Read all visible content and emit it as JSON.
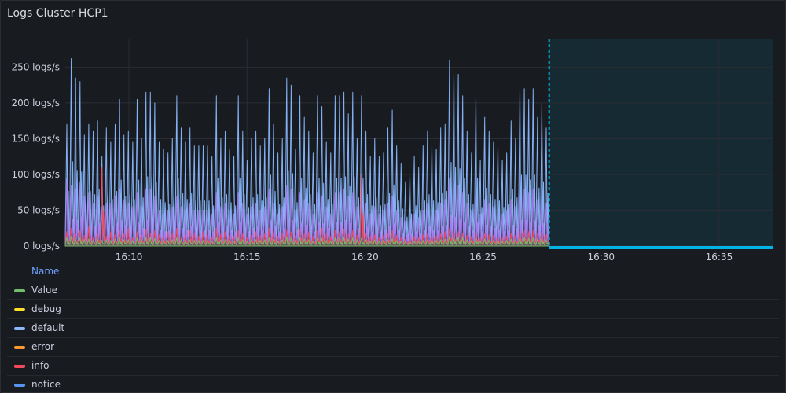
{
  "panel": {
    "title": "Logs Cluster HCP1"
  },
  "legend": {
    "header": "Name",
    "items": [
      {
        "label": "Value",
        "color": "#73bf69"
      },
      {
        "label": "debug",
        "color": "#fade2a"
      },
      {
        "label": "default",
        "color": "#8ab8ff"
      },
      {
        "label": "error",
        "color": "#ff9830"
      },
      {
        "label": "info",
        "color": "#f2495c"
      },
      {
        "label": "notice",
        "color": "#5794f2"
      }
    ]
  },
  "chart_data": {
    "type": "area",
    "ylabel_unit": "logs/s",
    "ylim": [
      0,
      290
    ],
    "y_ticks": [
      "0 logs/s",
      "50 logs/s",
      "100 logs/s",
      "150 logs/s",
      "200 logs/s",
      "250 logs/s"
    ],
    "y_tick_values": [
      0,
      50,
      100,
      150,
      200,
      250
    ],
    "x_ticks": [
      "16:10",
      "16:15",
      "16:20",
      "16:25",
      "16:30",
      "16:35"
    ],
    "x_tick_minutes": [
      10,
      15,
      20,
      25,
      30,
      35
    ],
    "x_range_minutes": [
      7.3,
      37.3
    ],
    "data_end_minute": 27.8,
    "grid": true,
    "series": [
      {
        "name": "default",
        "color": "#8ab8ff",
        "peaks": [
          170,
          262,
          235,
          230,
          155,
          170,
          160,
          175,
          125,
          165,
          145,
          170,
          205,
          155,
          160,
          145,
          205,
          150,
          215,
          215,
          200,
          145,
          135,
          130,
          150,
          210,
          165,
          145,
          165,
          140,
          140,
          140,
          140,
          125,
          210,
          150,
          160,
          135,
          125,
          210,
          160,
          120,
          150,
          160,
          140,
          150,
          220,
          170,
          130,
          150,
          235,
          225,
          135,
          210,
          180,
          160,
          130,
          210,
          195,
          145,
          130,
          210,
          210,
          215,
          185,
          215,
          150,
          210,
          160,
          125,
          150,
          125,
          130,
          165,
          190,
          140,
          115,
          90,
          100,
          125,
          110,
          140,
          160,
          140,
          135,
          165,
          170,
          260,
          245,
          240,
          210,
          160,
          130,
          210,
          120,
          180,
          160,
          145,
          140,
          120,
          130,
          175,
          150,
          220,
          220,
          205,
          220,
          180,
          200,
          165
        ]
      },
      {
        "name": "notice",
        "color": "#a77df0",
        "peaks": [
          95,
          85,
          80,
          90,
          70,
          75,
          60,
          70,
          55,
          60,
          60,
          70,
          80,
          65,
          60,
          55,
          75,
          55,
          80,
          80,
          70,
          50,
          45,
          50,
          55,
          70,
          55,
          50,
          60,
          50,
          50,
          50,
          50,
          45,
          75,
          55,
          60,
          50,
          45,
          75,
          60,
          45,
          55,
          60,
          50,
          55,
          80,
          60,
          45,
          55,
          85,
          80,
          50,
          75,
          65,
          60,
          45,
          75,
          70,
          55,
          45,
          75,
          75,
          80,
          70,
          75,
          55,
          75,
          60,
          45,
          55,
          45,
          50,
          60,
          70,
          50,
          40,
          35,
          40,
          45,
          40,
          50,
          60,
          50,
          50,
          60,
          65,
          95,
          90,
          85,
          75,
          60,
          50,
          75,
          45,
          65,
          60,
          55,
          50,
          45,
          50,
          65,
          55,
          80,
          80,
          75,
          80,
          65,
          70,
          60
        ]
      },
      {
        "name": "info",
        "color": "#f2495c",
        "peaks": [
          20,
          25,
          18,
          22,
          15,
          28,
          12,
          18,
          110,
          14,
          20,
          16,
          22,
          18,
          25,
          12,
          20,
          15,
          24,
          18,
          22,
          16,
          14,
          20,
          18,
          25,
          12,
          16,
          22,
          18,
          14,
          20,
          16,
          12,
          25,
          18,
          20,
          15,
          14,
          22,
          18,
          12,
          16,
          20,
          15,
          18,
          25,
          20,
          14,
          18,
          22,
          20,
          15,
          24,
          18,
          20,
          14,
          22,
          25,
          18,
          14,
          22,
          20,
          24,
          18,
          22,
          15,
          100,
          18,
          14,
          16,
          12,
          15,
          18,
          22,
          15,
          12,
          10,
          12,
          14,
          12,
          16,
          18,
          15,
          14,
          18,
          20,
          25,
          22,
          20,
          18,
          15,
          14,
          20,
          12,
          18,
          16,
          15,
          14,
          12,
          14,
          18,
          15,
          22,
          22,
          20,
          22,
          18,
          20,
          16
        ]
      },
      {
        "name": "Value",
        "color": "#73bf69",
        "peaks": [
          12,
          14,
          10,
          12,
          9,
          10,
          8,
          10,
          8,
          9,
          8,
          10,
          12,
          9,
          9,
          8,
          12,
          9,
          12,
          12,
          11,
          8,
          8,
          8,
          9,
          12,
          9,
          8,
          9,
          8,
          8,
          8,
          8,
          7,
          12,
          9,
          9,
          8,
          7,
          12,
          9,
          7,
          9,
          9,
          8,
          9,
          12,
          10,
          7,
          9,
          13,
          12,
          8,
          12,
          10,
          9,
          7,
          12,
          11,
          8,
          7,
          12,
          12,
          12,
          10,
          12,
          9,
          12,
          9,
          7,
          9,
          7,
          8,
          9,
          11,
          8,
          7,
          6,
          6,
          7,
          7,
          8,
          9,
          8,
          8,
          9,
          10,
          14,
          13,
          13,
          12,
          9,
          8,
          12,
          7,
          10,
          9,
          8,
          8,
          7,
          8,
          10,
          9,
          12,
          12,
          11,
          12,
          10,
          11,
          9
        ]
      }
    ],
    "future_band": {
      "from_minute": 27.8,
      "to_minute": 37.3,
      "color": "#00b4e6"
    }
  }
}
